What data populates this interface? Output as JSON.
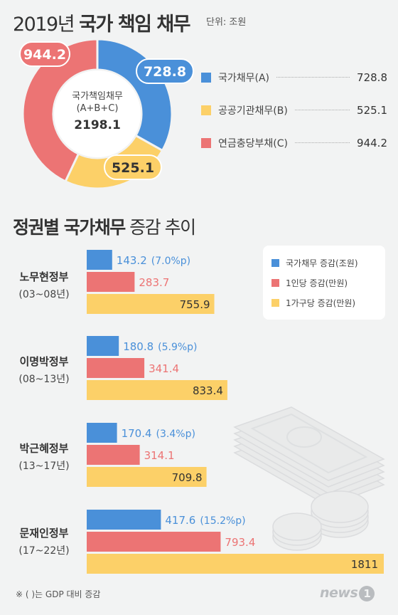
{
  "header": {
    "year_prefix": "2019년",
    "title_bold": "국가 책임 채무",
    "unit": "단위: 조원"
  },
  "donut": {
    "center_line1": "국가책임채무",
    "center_line2": "(A+B+C)",
    "center_total": "2198.1"
  },
  "colors": {
    "blue": "#4a90d9",
    "yellow": "#fcd068",
    "red": "#ec7474"
  },
  "section2": {
    "title_bold": "정권별 국가채무",
    "title_rest": "증감 추이"
  },
  "bar_legend": [
    {
      "label": "국가채무 증감(조원)",
      "color": "#4a90d9"
    },
    {
      "label": "1인당 증감(만원)",
      "color": "#ec7474"
    },
    {
      "label": "1가구당 증감(만원)",
      "color": "#fcd068"
    }
  ],
  "footnote": "※ ( )는 GDP 대비 증감",
  "logo": {
    "text": "news",
    "mark": "1"
  },
  "chart_data": [
    {
      "type": "pie",
      "title": "2019년 국가 책임 채무",
      "unit": "단위: 조원",
      "total": 2198.1,
      "slices": [
        {
          "label": "국가채무(A)",
          "value": 728.8,
          "display": "728.8",
          "color": "#4a90d9"
        },
        {
          "label": "공공기관채무(B)",
          "value": 525.1,
          "display": "525.1",
          "color": "#fcd068"
        },
        {
          "label": "연금충당부채(C)",
          "value": 944.2,
          "display": "944.2",
          "color": "#ec7474"
        }
      ]
    },
    {
      "type": "bar",
      "orientation": "horizontal",
      "title": "정권별 국가채무 증감 추이",
      "groups": [
        {
          "name": "노무현정부",
          "years": "(03~08년)",
          "debt": 143.2,
          "debt_label": "143.2",
          "gdp_pct": "(7.0%p)",
          "per_person": 283.7,
          "per_person_label": "283.7",
          "per_household": 755.9,
          "per_household_label": "755.9"
        },
        {
          "name": "이명박정부",
          "years": "(08~13년)",
          "debt": 180.8,
          "debt_label": "180.8",
          "gdp_pct": "(5.9%p)",
          "per_person": 341.4,
          "per_person_label": "341.4",
          "per_household": 833.4,
          "per_household_label": "833.4"
        },
        {
          "name": "박근혜정부",
          "years": "(13~17년)",
          "debt": 170.4,
          "debt_label": "170.4",
          "gdp_pct": "(3.4%p)",
          "per_person": 314.1,
          "per_person_label": "314.1",
          "per_household": 709.8,
          "per_household_label": "709.8"
        },
        {
          "name": "문재인정부",
          "years": "(17~22년)",
          "debt": 417.6,
          "debt_label": "417.6",
          "gdp_pct": "(15.2%p)",
          "per_person": 793.4,
          "per_person_label": "793.4",
          "per_household": 1811,
          "per_household_label": "1811"
        }
      ]
    }
  ]
}
